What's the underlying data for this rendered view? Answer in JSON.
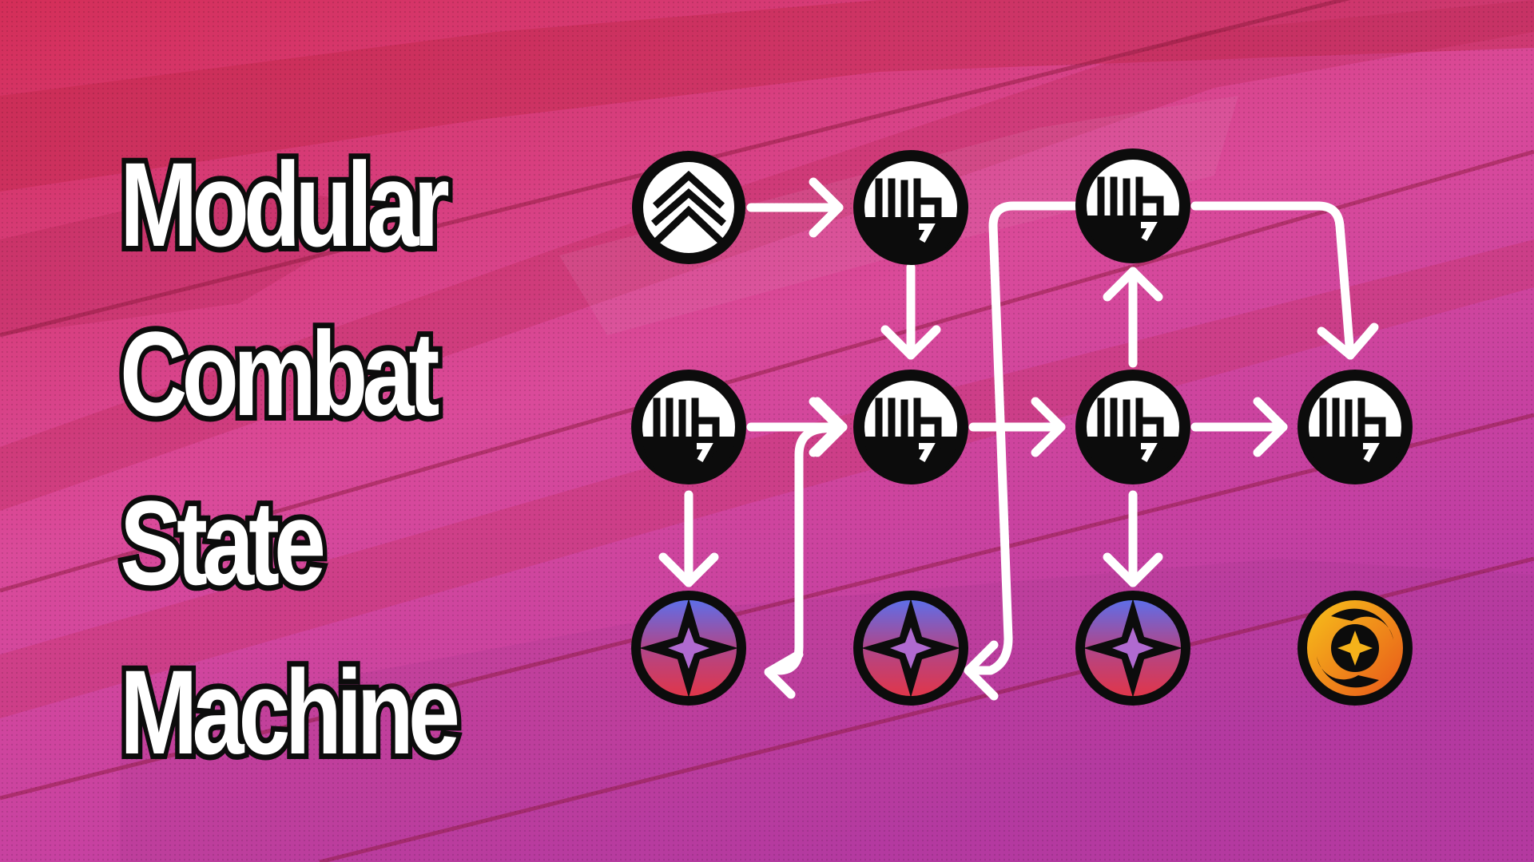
{
  "title": {
    "lines": [
      "Modular",
      "Combat",
      "State",
      "Machine"
    ]
  },
  "colors": {
    "background_top": "#d6305a",
    "background_mid": "#d9489c",
    "background_bottom": "#c03aa8",
    "title_text": "#ffffff",
    "title_outline": "#0c0c0c",
    "node_dark": "#0c0c0c",
    "node_stroke": "#ffffff",
    "arrow": "#ffffff",
    "special_gradient_top": "#5e6ee8",
    "special_gradient_bottom": "#e0364a",
    "special_star": "#b06ad0",
    "finisher_orange": "#f5a800",
    "finisher_red": "#e0401a"
  },
  "diagram": {
    "nodes": [
      {
        "id": "start",
        "icon": "chevrons-up-icon"
      },
      {
        "id": "attack-1",
        "icon": "fist-icon"
      },
      {
        "id": "attack-2",
        "icon": "fist-icon"
      },
      {
        "id": "attack-3",
        "icon": "fist-icon"
      },
      {
        "id": "attack-4",
        "icon": "fist-icon"
      },
      {
        "id": "attack-5",
        "icon": "fist-icon"
      },
      {
        "id": "attack-6",
        "icon": "fist-icon"
      },
      {
        "id": "special-1",
        "icon": "shuriken-icon"
      },
      {
        "id": "special-2",
        "icon": "shuriken-icon"
      },
      {
        "id": "special-3",
        "icon": "shuriken-icon"
      },
      {
        "id": "finisher",
        "icon": "swirl-star-icon"
      }
    ],
    "edges": [
      {
        "from": "start",
        "to": "attack-1"
      },
      {
        "from": "attack-1",
        "to": "attack-3"
      },
      {
        "from": "attack-2",
        "to": "attack-3"
      },
      {
        "from": "attack-2",
        "to": "special-1"
      },
      {
        "from": "special-1",
        "to": "attack-3"
      },
      {
        "from": "attack-3",
        "to": "attack-4"
      },
      {
        "from": "attack-4",
        "to": "attack-5"
      },
      {
        "from": "attack-4",
        "to": "attack-6"
      },
      {
        "from": "attack-4",
        "to": "special-3"
      },
      {
        "from": "attack-5",
        "to": "attack-6"
      },
      {
        "from": "attack-5",
        "to": "special-2"
      }
    ]
  }
}
